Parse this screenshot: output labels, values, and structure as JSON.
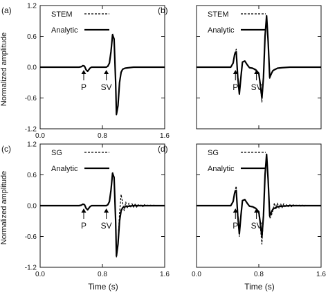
{
  "figure": {
    "xlabel": "Time (s)",
    "ylabel": "Normalized amplitude"
  },
  "chart_data": [
    {
      "panel": "(a)",
      "type": "line",
      "xlim": [
        0.0,
        1.6
      ],
      "ylim": [
        -1.2,
        1.2
      ],
      "xticks": [
        0.0,
        0.8,
        1.6
      ],
      "yticks": [
        1.2,
        0.6,
        0.0,
        -0.6,
        -1.2
      ],
      "xtick_labels": [
        "0.0",
        "0.8",
        "1.6"
      ],
      "ytick_labels": [
        "1.2",
        "0.6",
        "0.0",
        "-0.6",
        "-1.2"
      ],
      "show_xticklabels": true,
      "show_yticklabels": true,
      "show_xlabel": false,
      "show_ylabel": true,
      "grid": false,
      "legend": {
        "placement": "top-left",
        "entries": [
          {
            "label": "STEM",
            "style": "dashed"
          },
          {
            "label": "Analytic",
            "style": "solid"
          }
        ]
      },
      "annotations": [
        {
          "text": "P",
          "x": 0.56
        },
        {
          "text": "SV",
          "x": 0.85
        }
      ],
      "series": [
        {
          "style": "solid",
          "x": [
            0,
            0.5,
            0.53,
            0.55,
            0.57,
            0.59,
            0.61,
            0.64,
            0.66,
            0.68,
            0.85,
            0.87,
            0.89,
            0.91,
            0.93,
            0.95,
            0.97,
            0.98,
            1.0,
            1.02,
            1.04,
            1.06,
            1.09,
            1.14,
            1.2,
            1.6
          ],
          "y": [
            0,
            0,
            0.01,
            0.03,
            0.02,
            -0.05,
            -0.08,
            -0.02,
            0.0,
            0,
            0,
            0.02,
            0.08,
            0.3,
            0.63,
            0.55,
            -0.3,
            -0.92,
            -0.75,
            -0.3,
            -0.1,
            -0.04,
            -0.02,
            -0.01,
            0,
            0
          ]
        },
        {
          "style": "dashed",
          "x": [
            0,
            0.5,
            0.53,
            0.55,
            0.57,
            0.59,
            0.61,
            0.64,
            0.66,
            0.68,
            0.85,
            0.87,
            0.89,
            0.91,
            0.93,
            0.95,
            0.97,
            0.98,
            1.0,
            1.02,
            1.04,
            1.06,
            1.09,
            1.14,
            1.2,
            1.6
          ],
          "y": [
            0,
            0,
            0.01,
            0.03,
            0.02,
            -0.05,
            -0.08,
            -0.02,
            0.0,
            0,
            0,
            0.02,
            0.08,
            0.32,
            0.66,
            0.55,
            -0.3,
            -0.94,
            -0.76,
            -0.3,
            -0.1,
            -0.04,
            -0.02,
            -0.01,
            0,
            0
          ]
        }
      ]
    },
    {
      "panel": "(b)",
      "type": "line",
      "xlim": [
        0.0,
        1.6
      ],
      "ylim": [
        -1.2,
        1.2
      ],
      "xticks": [
        0.0,
        0.8,
        1.6
      ],
      "yticks": [
        1.2,
        0.6,
        0.0,
        -0.6,
        -1.2
      ],
      "xtick_labels": [
        "0.0",
        "0.8",
        "1.6"
      ],
      "ytick_labels": [
        "1.2",
        "0.6",
        "0.0",
        "-0.6",
        "-1.2"
      ],
      "show_xticklabels": false,
      "show_yticklabels": false,
      "show_xlabel": false,
      "show_ylabel": false,
      "grid": false,
      "legend": {
        "placement": "top-left",
        "entries": [
          {
            "label": "STEM",
            "style": "dashed"
          },
          {
            "label": "Analytic",
            "style": "solid"
          }
        ]
      },
      "annotations": [
        {
          "text": "P",
          "x": 0.5
        },
        {
          "text": "SV",
          "x": 0.77
        }
      ],
      "series": [
        {
          "style": "solid",
          "x": [
            0,
            0.44,
            0.47,
            0.49,
            0.51,
            0.53,
            0.55,
            0.57,
            0.59,
            0.62,
            0.65,
            0.68,
            0.72,
            0.76,
            0.8,
            0.82,
            0.84,
            0.86,
            0.88,
            0.9,
            0.92,
            0.94,
            0.96,
            0.98,
            1.0,
            1.04,
            1.1,
            1.2,
            1.6
          ],
          "y": [
            0,
            0,
            0.08,
            0.25,
            0.3,
            -0.2,
            -0.52,
            -0.2,
            0.1,
            0.12,
            0.05,
            -0.01,
            -0.02,
            -0.05,
            -0.12,
            -0.35,
            -0.6,
            -0.2,
            0.6,
            1.0,
            0.5,
            -0.2,
            -0.13,
            -0.07,
            -0.05,
            -0.02,
            -0.01,
            0,
            0
          ]
        },
        {
          "style": "dashed",
          "x": [
            0,
            0.44,
            0.47,
            0.49,
            0.51,
            0.53,
            0.55,
            0.57,
            0.59,
            0.62,
            0.65,
            0.68,
            0.72,
            0.76,
            0.8,
            0.82,
            0.84,
            0.86,
            0.88,
            0.9,
            0.92,
            0.94,
            0.96,
            0.98,
            1.0,
            1.04,
            1.1,
            1.2,
            1.6
          ],
          "y": [
            0,
            0,
            0.09,
            0.27,
            0.35,
            -0.22,
            -0.55,
            -0.2,
            0.1,
            0.12,
            0.05,
            -0.01,
            -0.03,
            -0.06,
            -0.14,
            -0.4,
            -0.68,
            -0.22,
            0.62,
            1.0,
            0.5,
            -0.22,
            -0.14,
            -0.08,
            -0.05,
            -0.02,
            -0.01,
            0,
            0
          ]
        }
      ]
    },
    {
      "panel": "(c)",
      "type": "line",
      "xlim": [
        0.0,
        1.6
      ],
      "ylim": [
        -1.2,
        1.2
      ],
      "xticks": [
        0.0,
        0.8,
        1.6
      ],
      "yticks": [
        1.2,
        0.6,
        0.0,
        -0.6,
        -1.2
      ],
      "xtick_labels": [
        "0.0",
        "0.8",
        "1.6"
      ],
      "ytick_labels": [
        "1.2",
        "0.6",
        "0.0",
        "-0.6",
        "-1.2"
      ],
      "show_xticklabels": true,
      "show_yticklabels": true,
      "show_xlabel": true,
      "show_ylabel": true,
      "grid": false,
      "legend": {
        "placement": "top-left",
        "entries": [
          {
            "label": "SG",
            "style": "dashed"
          },
          {
            "label": "Analytic",
            "style": "solid"
          }
        ]
      },
      "annotations": [
        {
          "text": "P",
          "x": 0.56
        },
        {
          "text": "SV",
          "x": 0.85
        }
      ],
      "series": [
        {
          "style": "solid",
          "x": [
            0,
            0.5,
            0.53,
            0.55,
            0.57,
            0.59,
            0.61,
            0.64,
            0.66,
            0.68,
            0.85,
            0.87,
            0.89,
            0.91,
            0.93,
            0.95,
            0.97,
            0.98,
            1.0,
            1.02,
            1.04,
            1.06,
            1.09,
            1.14,
            1.2,
            1.6
          ],
          "y": [
            0,
            0,
            0.01,
            0.03,
            0.02,
            -0.05,
            -0.08,
            -0.02,
            0.0,
            0,
            0,
            0.02,
            0.08,
            0.3,
            0.63,
            0.55,
            -0.3,
            -0.98,
            -0.75,
            -0.3,
            -0.1,
            -0.04,
            -0.02,
            -0.01,
            0,
            0
          ]
        },
        {
          "style": "dashed",
          "x": [
            0,
            0.5,
            0.53,
            0.55,
            0.57,
            0.59,
            0.61,
            0.64,
            0.66,
            0.68,
            0.85,
            0.87,
            0.89,
            0.91,
            0.93,
            0.95,
            0.97,
            0.98,
            1.0,
            1.02,
            1.04,
            1.06,
            1.08,
            1.1,
            1.12,
            1.14,
            1.16,
            1.18,
            1.2,
            1.22,
            1.24,
            1.26,
            1.28,
            1.3,
            1.32,
            1.34,
            1.36,
            1.38,
            1.4,
            1.42,
            1.44,
            1.46,
            1.48,
            1.5,
            1.6
          ],
          "y": [
            0,
            0,
            0.01,
            0.03,
            0.02,
            -0.05,
            -0.08,
            -0.02,
            0.0,
            0,
            0,
            0.02,
            0.08,
            0.32,
            0.66,
            0.55,
            -0.3,
            -1.0,
            -0.7,
            -0.15,
            0.22,
            0.05,
            -0.1,
            0.07,
            -0.05,
            0.05,
            -0.04,
            0.04,
            -0.03,
            0.03,
            -0.03,
            0.02,
            -0.02,
            0.02,
            -0.02,
            0.02,
            -0.01,
            0.01,
            -0.01,
            0.01,
            -0.01,
            0.01,
            0,
            0,
            0
          ]
        }
      ]
    },
    {
      "panel": "(d)",
      "type": "line",
      "xlim": [
        0.0,
        1.6
      ],
      "ylim": [
        -1.2,
        1.2
      ],
      "xticks": [
        0.0,
        0.8,
        1.6
      ],
      "yticks": [
        1.2,
        0.6,
        0.0,
        -0.6,
        -1.2
      ],
      "xtick_labels": [
        "0.0",
        "0.8",
        "1.6"
      ],
      "ytick_labels": [
        "1.2",
        "0.6",
        "0.0",
        "-0.6",
        "-1.2"
      ],
      "show_xticklabels": true,
      "show_yticklabels": false,
      "show_xlabel": true,
      "show_ylabel": false,
      "grid": false,
      "legend": {
        "placement": "top-left",
        "entries": [
          {
            "label": "SG",
            "style": "dashed"
          },
          {
            "label": "Analytic",
            "style": "solid"
          }
        ]
      },
      "annotations": [
        {
          "text": "P",
          "x": 0.5
        },
        {
          "text": "SV",
          "x": 0.77
        }
      ],
      "series": [
        {
          "style": "solid",
          "x": [
            0,
            0.44,
            0.47,
            0.49,
            0.51,
            0.53,
            0.55,
            0.57,
            0.59,
            0.62,
            0.65,
            0.68,
            0.72,
            0.76,
            0.8,
            0.82,
            0.84,
            0.86,
            0.88,
            0.9,
            0.92,
            0.94,
            0.96,
            0.98,
            1.0,
            1.04,
            1.1,
            1.2,
            1.6
          ],
          "y": [
            0,
            0,
            0.08,
            0.25,
            0.3,
            -0.2,
            -0.55,
            -0.2,
            0.1,
            0.12,
            0.05,
            -0.01,
            -0.02,
            -0.05,
            -0.12,
            -0.35,
            -0.6,
            -0.2,
            0.6,
            1.0,
            0.5,
            -0.2,
            -0.13,
            -0.07,
            -0.05,
            -0.02,
            -0.01,
            0,
            0
          ]
        },
        {
          "style": "dashed",
          "x": [
            0,
            0.44,
            0.47,
            0.49,
            0.51,
            0.53,
            0.55,
            0.57,
            0.59,
            0.62,
            0.65,
            0.68,
            0.72,
            0.76,
            0.8,
            0.82,
            0.84,
            0.86,
            0.88,
            0.9,
            0.92,
            0.94,
            0.96,
            0.98,
            1.0,
            1.02,
            1.04,
            1.06,
            1.08,
            1.1,
            1.12,
            1.14,
            1.16,
            1.18,
            1.2,
            1.22,
            1.24,
            1.26,
            1.28,
            1.3,
            1.32,
            1.34,
            1.36,
            1.38,
            1.4,
            1.42,
            1.44,
            1.46,
            1.48,
            1.5,
            1.6
          ],
          "y": [
            0,
            0,
            0.09,
            0.27,
            0.38,
            -0.22,
            -0.6,
            -0.2,
            0.1,
            0.12,
            0.05,
            -0.01,
            -0.03,
            -0.06,
            -0.15,
            -0.42,
            -0.75,
            -0.22,
            0.62,
            1.0,
            0.45,
            -0.25,
            -0.2,
            -0.1,
            0.05,
            -0.06,
            0.05,
            -0.05,
            0.04,
            -0.04,
            0.04,
            -0.03,
            0.03,
            -0.03,
            0.02,
            -0.02,
            0.02,
            -0.02,
            0.01,
            -0.01,
            0.01,
            -0.01,
            0.01,
            -0.01,
            0.01,
            0,
            0,
            0,
            0,
            0,
            0
          ]
        }
      ]
    }
  ]
}
